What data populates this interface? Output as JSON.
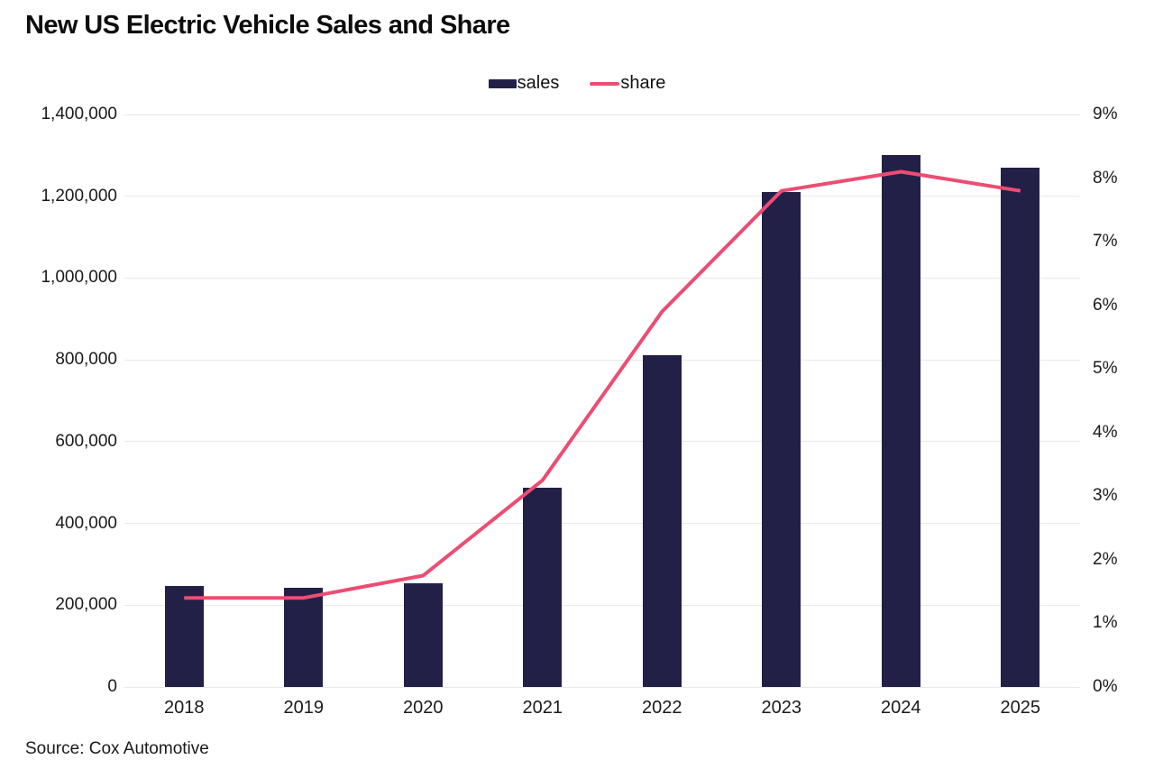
{
  "source": "Source: Cox Automotive",
  "legend": {
    "sales_label": "sales",
    "share_label": "share"
  },
  "colors": {
    "bar": "#232048",
    "line": "#ec4d72",
    "grid": "#e9e9e9",
    "text": "#1a1a1a"
  },
  "chart_data": {
    "type": "bar",
    "title": "New US Electric Vehicle Sales and Share",
    "categories": [
      "2018",
      "2019",
      "2020",
      "2021",
      "2022",
      "2023",
      "2024",
      "2025"
    ],
    "series": [
      {
        "name": "sales",
        "type": "bar",
        "axis": "left",
        "values": [
          248000,
          243000,
          254000,
          487000,
          812000,
          1210000,
          1300000,
          1271000
        ]
      },
      {
        "name": "share",
        "type": "line",
        "axis": "right",
        "values": [
          1.4,
          1.4,
          1.75,
          3.25,
          5.9,
          7.8,
          8.1,
          7.8
        ]
      }
    ],
    "left_axis": {
      "min": 0,
      "max": 1400000,
      "step": 200000,
      "tick_labels": [
        "0",
        "200,000",
        "400,000",
        "600,000",
        "800,000",
        "1,000,000",
        "1,200,000",
        "1,400,000"
      ]
    },
    "right_axis": {
      "min": 0,
      "max": 9,
      "step": 1,
      "tick_labels": [
        "0%",
        "1%",
        "2%",
        "3%",
        "4%",
        "5%",
        "6%",
        "7%",
        "8%",
        "9%"
      ]
    },
    "grid": "horizontal",
    "legend_position": "top-center"
  }
}
